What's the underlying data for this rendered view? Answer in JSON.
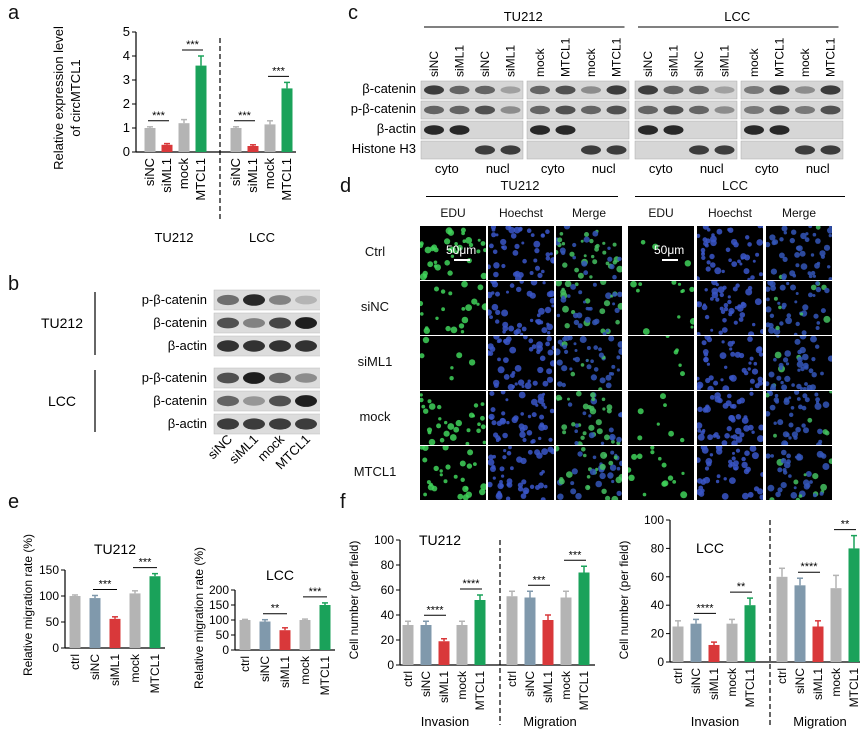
{
  "panel_labels": [
    "a",
    "b",
    "c",
    "d",
    "e",
    "f"
  ],
  "colors": {
    "gray": "#b4b4b4",
    "blue": "#8099ac",
    "red": "#d9383a",
    "green": "#1aa25a"
  },
  "panel_a": {
    "ylabel_line1": "Relative expression level",
    "ylabel_line2": "of circMTCL1",
    "group_labels": [
      "TU212",
      "LCC"
    ],
    "chart_data": {
      "type": "bar",
      "ylim": [
        0,
        5
      ],
      "yticks": [
        "0",
        "1",
        "2",
        "3",
        "4",
        "5"
      ],
      "categories": [
        "siNC",
        "siML1",
        "mock",
        "MTCL1",
        "siNC",
        "siML1",
        "mock",
        "MTCL1"
      ],
      "values": [
        1.0,
        0.3,
        1.2,
        3.6,
        1.0,
        0.25,
        1.15,
        2.65
      ],
      "errors": [
        0.05,
        0.05,
        0.15,
        0.4,
        0.05,
        0.05,
        0.15,
        0.25
      ],
      "colors": [
        "gray",
        "red",
        "gray",
        "green",
        "gray",
        "red",
        "gray",
        "green"
      ],
      "significance": [
        {
          "pair": [
            0,
            1
          ],
          "label": "***"
        },
        {
          "pair": [
            2,
            3
          ],
          "label": "***"
        },
        {
          "pair": [
            4,
            5
          ],
          "label": "***"
        },
        {
          "pair": [
            6,
            7
          ],
          "label": "***"
        }
      ]
    }
  },
  "panel_b": {
    "groups": [
      "TU212",
      "LCC"
    ],
    "rows": [
      "p-β-catenin",
      "β-catenin",
      "β-actin",
      "p-β-catenin",
      "β-catenin",
      "β-actin"
    ],
    "lanes": [
      "siNC",
      "siML1",
      "mock",
      "MTCL1"
    ]
  },
  "panel_c": {
    "groups": [
      "TU212",
      "LCC"
    ],
    "lanes": [
      "siNC",
      "siML1",
      "siNC",
      "siML1",
      "mock",
      "MTCL1",
      "mock",
      "MTCL1",
      "siNC",
      "siML1",
      "siNC",
      "siML1",
      "mock",
      "MTCL1",
      "mock",
      "MTCL1"
    ],
    "rows": [
      "β-catenin",
      "p-β-catenin",
      "β-actin",
      "Histone H3"
    ],
    "fractions": [
      "cyto",
      "nucl",
      "cyto",
      "nucl",
      "cyto",
      "nucl",
      "cyto",
      "nucl"
    ]
  },
  "panel_d": {
    "groups": [
      "TU212",
      "LCC"
    ],
    "channels": [
      "EDU",
      "Hoechst",
      "Merge",
      "EDU",
      "Hoechst",
      "Merge"
    ],
    "rows": [
      "Ctrl",
      "siNC",
      "siML1",
      "mock",
      "MTCL1"
    ],
    "scalebar": "50μm"
  },
  "panel_e": {
    "charts": [
      {
        "title": "TU212",
        "ylabel": "Relative migration rate (%)",
        "chart_data": {
          "type": "bar",
          "ylim": [
            0,
            150
          ],
          "yticks": [
            "0",
            "50",
            "100",
            "150"
          ],
          "categories": [
            "ctrl",
            "siNC",
            "siML1",
            "mock",
            "MTCL1"
          ],
          "values": [
            100,
            96,
            56,
            105,
            138
          ],
          "errors": [
            2,
            5,
            4,
            5,
            5
          ],
          "colors": [
            "gray",
            "blue",
            "red",
            "gray",
            "green"
          ],
          "significance": [
            {
              "pair": [
                1,
                2
              ],
              "label": "***"
            },
            {
              "pair": [
                3,
                4
              ],
              "label": "***"
            }
          ]
        }
      },
      {
        "title": "LCC",
        "ylabel": "Relative migration rate (%)",
        "chart_data": {
          "type": "bar",
          "ylim": [
            0,
            200
          ],
          "yticks": [
            "0",
            "50",
            "100",
            "150",
            "200"
          ],
          "categories": [
            "ctrl",
            "siNC",
            "siML1",
            "mock",
            "MTCL1"
          ],
          "values": [
            100,
            95,
            66,
            100,
            150
          ],
          "errors": [
            2,
            6,
            8,
            3,
            7
          ],
          "colors": [
            "gray",
            "blue",
            "red",
            "gray",
            "green"
          ],
          "significance": [
            {
              "pair": [
                1,
                2
              ],
              "label": "**"
            },
            {
              "pair": [
                3,
                4
              ],
              "label": "***"
            }
          ]
        }
      }
    ]
  },
  "panel_f": {
    "charts": [
      {
        "title": "TU212",
        "ylabel": "Cell number (per field)",
        "groups": [
          "Invasion",
          "Migration"
        ],
        "chart_data": {
          "type": "bar",
          "ylim": [
            0,
            100
          ],
          "yticks": [
            "0",
            "20",
            "40",
            "60",
            "80",
            "100"
          ],
          "categories": [
            "ctrl",
            "siNC",
            "siML1",
            "mock",
            "MTCL1",
            "ctrl",
            "siNC",
            "siML1",
            "mock",
            "MTCL1"
          ],
          "values": [
            32,
            32,
            19,
            32,
            52,
            55,
            54,
            36,
            54,
            74
          ],
          "errors": [
            3,
            3,
            2,
            3,
            4,
            4,
            5,
            4,
            5,
            5
          ],
          "colors": [
            "gray",
            "blue",
            "red",
            "gray",
            "green",
            "gray",
            "blue",
            "red",
            "gray",
            "green"
          ],
          "significance": [
            {
              "pair": [
                1,
                2
              ],
              "label": "****"
            },
            {
              "pair": [
                3,
                4
              ],
              "label": "****"
            },
            {
              "pair": [
                6,
                7
              ],
              "label": "***"
            },
            {
              "pair": [
                8,
                9
              ],
              "label": "***"
            }
          ]
        }
      },
      {
        "title": "LCC",
        "ylabel": "Cell number (per field)",
        "groups": [
          "Invasion",
          "Migration"
        ],
        "chart_data": {
          "type": "bar",
          "ylim": [
            0,
            100
          ],
          "yticks": [
            "0",
            "20",
            "40",
            "60",
            "80",
            "100"
          ],
          "categories": [
            "ctrl",
            "siNC",
            "siML1",
            "mock",
            "MTCL1",
            "ctrl",
            "siNC",
            "siML1",
            "mock",
            "MTCL1"
          ],
          "values": [
            25,
            27,
            12,
            27,
            40,
            60,
            54,
            25,
            52,
            80
          ],
          "errors": [
            4,
            3,
            2,
            3,
            5,
            6,
            5,
            4,
            9,
            9
          ],
          "colors": [
            "gray",
            "blue",
            "red",
            "gray",
            "green",
            "gray",
            "blue",
            "red",
            "gray",
            "green"
          ],
          "significance": [
            {
              "pair": [
                1,
                2
              ],
              "label": "****"
            },
            {
              "pair": [
                3,
                4
              ],
              "label": "**"
            },
            {
              "pair": [
                6,
                7
              ],
              "label": "****"
            },
            {
              "pair": [
                8,
                9
              ],
              "label": "**"
            }
          ]
        }
      }
    ]
  }
}
